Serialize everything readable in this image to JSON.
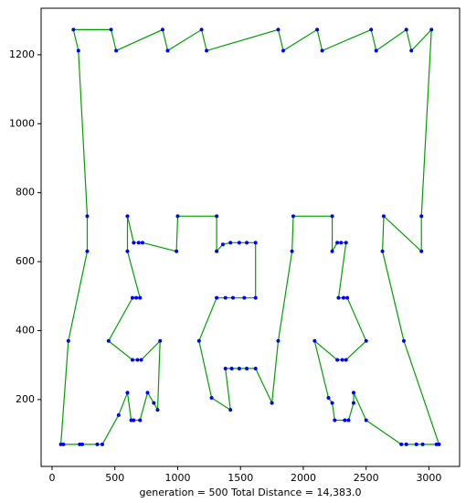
{
  "chart_data": {
    "type": "line",
    "xlabel": "generation = 500    Total Distance = 14,383.0",
    "x": [
      170,
      470,
      510,
      880,
      920,
      1190,
      1230,
      1800,
      1840,
      2110,
      2150,
      2540,
      2580,
      2820,
      2860,
      3020,
      2940,
      2940,
      2640,
      2630,
      2800,
      3080,
      3060,
      2950,
      2900,
      2820,
      2780,
      2500,
      2400,
      2400,
      2360,
      2330,
      2250,
      2230,
      2200,
      2090,
      2270,
      2310,
      2340,
      2500,
      2350,
      2320,
      2280,
      2340,
      2300,
      2270,
      2230,
      2230,
      1920,
      1910,
      1800,
      1750,
      1620,
      1550,
      1490,
      1430,
      1380,
      1420,
      1270,
      1170,
      1310,
      1380,
      1440,
      1530,
      1620,
      1620,
      1550,
      1490,
      1420,
      1360,
      1310,
      1310,
      1000,
      990,
      720,
      690,
      650,
      600,
      600,
      700,
      670,
      640,
      450,
      640,
      680,
      710,
      860,
      840,
      810,
      760,
      700,
      650,
      630,
      600,
      530,
      400,
      360,
      240,
      220,
      90,
      70,
      130,
      280,
      280,
      210
    ],
    "series": [
      {
        "color": "#00a000",
        "marker_color": "#0000ff",
        "values": [
          1273,
          1273,
          1212,
          1273,
          1212,
          1273,
          1212,
          1273,
          1212,
          1273,
          1212,
          1273,
          1212,
          1273,
          1212,
          1273,
          732,
          630,
          732,
          630,
          370,
          70,
          70,
          70,
          70,
          70,
          70,
          140,
          220,
          190,
          140,
          140,
          140,
          190,
          205,
          370,
          315,
          315,
          315,
          370,
          495,
          495,
          495,
          655,
          655,
          655,
          630,
          732,
          732,
          630,
          370,
          190,
          290,
          290,
          290,
          290,
          290,
          170,
          205,
          370,
          495,
          495,
          495,
          495,
          495,
          655,
          655,
          655,
          655,
          650,
          630,
          732,
          732,
          630,
          655,
          655,
          655,
          732,
          630,
          495,
          495,
          495,
          370,
          315,
          315,
          315,
          370,
          170,
          190,
          220,
          140,
          140,
          140,
          220,
          155,
          70,
          70,
          70,
          70,
          70,
          70,
          370,
          630,
          732,
          1212
        ]
      }
    ],
    "xlim": [
      -87,
      3244
    ],
    "ylim": [
      6,
      1335
    ],
    "xticks": [
      0,
      500,
      1000,
      1500,
      2000,
      2500,
      3000
    ],
    "yticks": [
      200,
      400,
      600,
      800,
      1000,
      1200
    ]
  }
}
